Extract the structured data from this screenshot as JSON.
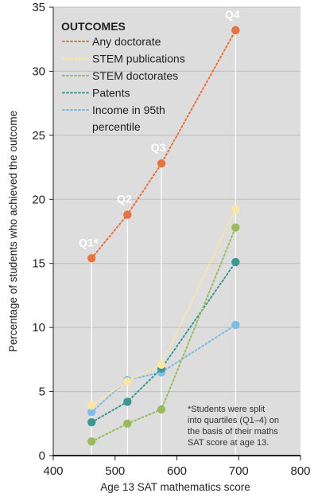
{
  "chart_data": {
    "type": "line",
    "xlabel": "Age 13 SAT mathematics score",
    "ylabel": "Percentage of students who achieved the outcome",
    "xlim": [
      400,
      800
    ],
    "ylim": [
      0,
      35
    ],
    "xticks": [
      400,
      500,
      600,
      700,
      800
    ],
    "yticks": [
      0,
      5,
      10,
      15,
      20,
      25,
      30,
      35
    ],
    "grid": "horizontal",
    "legend_title": "OUTCOMES",
    "legend_position": "top-left",
    "x": [
      462,
      520,
      575,
      695
    ],
    "quartile_labels": [
      "Q1*",
      "Q2",
      "Q3",
      "Q4"
    ],
    "series": [
      {
        "name": "Any doctorate",
        "color": "#e8743b",
        "values": [
          15.4,
          18.8,
          22.8,
          33.2
        ]
      },
      {
        "name": "STEM publications",
        "color": "#fbe7a1",
        "values": [
          3.9,
          5.8,
          7.1,
          19.2
        ]
      },
      {
        "name": "STEM doctorates",
        "color": "#9bbb59",
        "values": [
          1.1,
          2.5,
          3.6,
          17.8
        ]
      },
      {
        "name": "Patents",
        "color": "#3a9a92",
        "values": [
          2.6,
          4.2,
          6.8,
          15.1
        ]
      },
      {
        "name": "Income in 95th percentile",
        "color": "#7bbde6",
        "values": [
          3.4,
          5.9,
          6.5,
          10.2
        ]
      }
    ],
    "legend_lines": [
      [
        "Any doctorate"
      ],
      [
        "STEM publications"
      ],
      [
        "STEM doctorates"
      ],
      [
        "Patents"
      ],
      [
        "Income in 95th",
        "percentile"
      ]
    ],
    "note": [
      "*Students were split",
      "into quartiles (Q1–4) on",
      "the basis of their maths",
      "SAT score at age 13."
    ]
  }
}
